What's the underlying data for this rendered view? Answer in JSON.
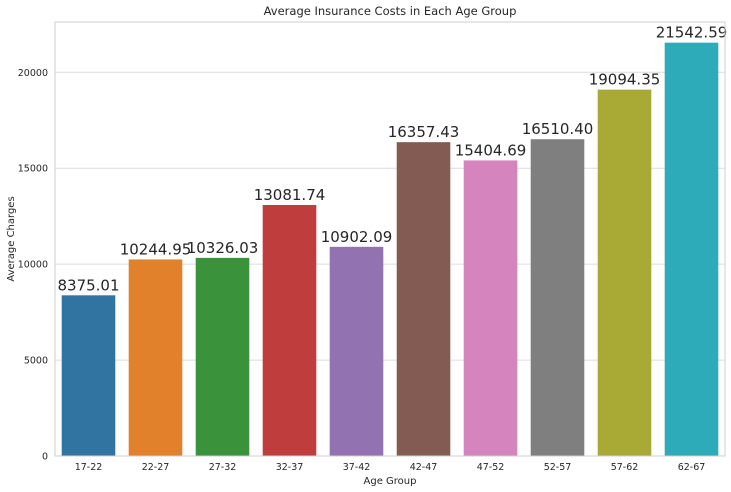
{
  "chart_data": {
    "type": "bar",
    "title": "Average Insurance Costs in Each Age Group",
    "xlabel": "Age Group",
    "ylabel": "Average Charges",
    "categories": [
      "17-22",
      "22-27",
      "27-32",
      "32-37",
      "37-42",
      "42-47",
      "47-52",
      "52-57",
      "57-62",
      "62-67"
    ],
    "values": [
      8375.01,
      10244.95,
      10326.03,
      13081.74,
      10902.09,
      16357.43,
      15404.69,
      16510.4,
      19094.35,
      21542.59
    ],
    "value_labels": [
      "8375.01",
      "10244.95",
      "10326.03",
      "13081.74",
      "10902.09",
      "16357.43",
      "15404.69",
      "16510.40",
      "19094.35",
      "21542.59"
    ],
    "colors": [
      "#3274a1",
      "#e1812c",
      "#3a923a",
      "#c03d3e",
      "#9372b2",
      "#845b53",
      "#d684bd",
      "#7f7f7f",
      "#a9aa35",
      "#2eabb8"
    ],
    "yticks": [
      0,
      5000,
      10000,
      15000,
      20000
    ],
    "ytick_labels": [
      "0",
      "5000",
      "10000",
      "15000",
      "20000"
    ],
    "ylim": [
      0,
      22620
    ],
    "grid": true,
    "grid_axis": "y",
    "legend": "none"
  }
}
